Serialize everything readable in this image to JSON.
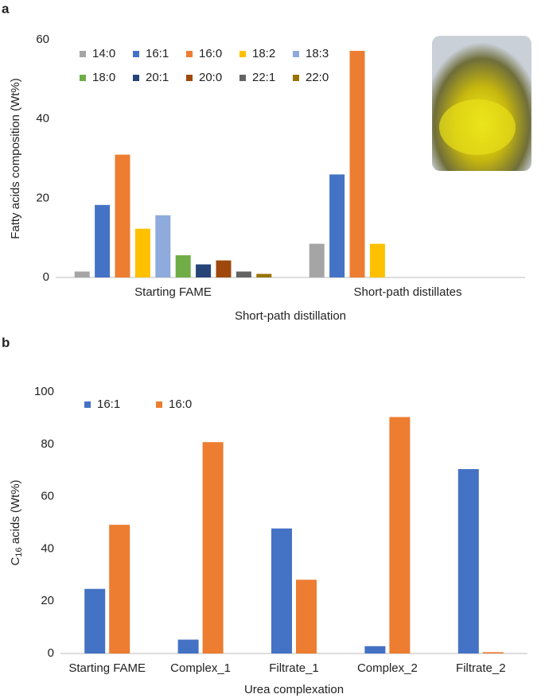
{
  "chart_data": [
    {
      "type": "bar",
      "panel_label": "a",
      "ylabel": "Fatty acids composition (Wt%)",
      "xlabel": "Short-path distillation",
      "categories": [
        "Starting FAME",
        "Short-path distillates"
      ],
      "series": [
        {
          "name": "14:0",
          "color": "#a5a5a5",
          "values": [
            1.5,
            8.5
          ]
        },
        {
          "name": "16:1",
          "color": "#4472c4",
          "values": [
            18.3,
            26
          ]
        },
        {
          "name": "16:0",
          "color": "#ed7d31",
          "values": [
            31,
            57.2
          ]
        },
        {
          "name": "18:2",
          "color": "#ffc000",
          "values": [
            12.3,
            8.5
          ]
        },
        {
          "name": "18:3",
          "color": "#8faadc",
          "values": [
            15.7,
            0
          ]
        },
        {
          "name": "18:0",
          "color": "#70ad47",
          "values": [
            5.6,
            0
          ]
        },
        {
          "name": "20:1",
          "color": "#264478",
          "values": [
            3.3,
            0
          ]
        },
        {
          "name": "20:0",
          "color": "#9e480e",
          "values": [
            4.3,
            0
          ]
        },
        {
          "name": "22:1",
          "color": "#636363",
          "values": [
            1.5,
            0
          ]
        },
        {
          "name": "22:0",
          "color": "#997300",
          "values": [
            0.9,
            0
          ]
        }
      ],
      "ylim": [
        0,
        60
      ],
      "yticks": [
        0,
        20,
        40,
        60
      ],
      "grid": false,
      "legend": "upper left"
    },
    {
      "type": "bar",
      "panel_label": "b",
      "ylabel": {
        "base": "C",
        "subscript": "16",
        "rest": " acids (Wt%)"
      },
      "xlabel": "Urea complexation",
      "categories": [
        "Starting FAME",
        "Complex_1",
        "Filtrate_1",
        "Complex_2",
        "Filtrate_2"
      ],
      "series": [
        {
          "name": "16:1",
          "color": "#4472c4",
          "values": [
            24.7,
            5.3,
            47.8,
            2.8,
            70.5
          ]
        },
        {
          "name": "16:0",
          "color": "#ed7d31",
          "values": [
            49.2,
            80.8,
            28.2,
            90.4,
            0.5
          ]
        }
      ],
      "ylim": [
        0,
        100
      ],
      "yticks": [
        0,
        20,
        40,
        60,
        80,
        100
      ],
      "grid": false,
      "legend": "upper left"
    }
  ]
}
